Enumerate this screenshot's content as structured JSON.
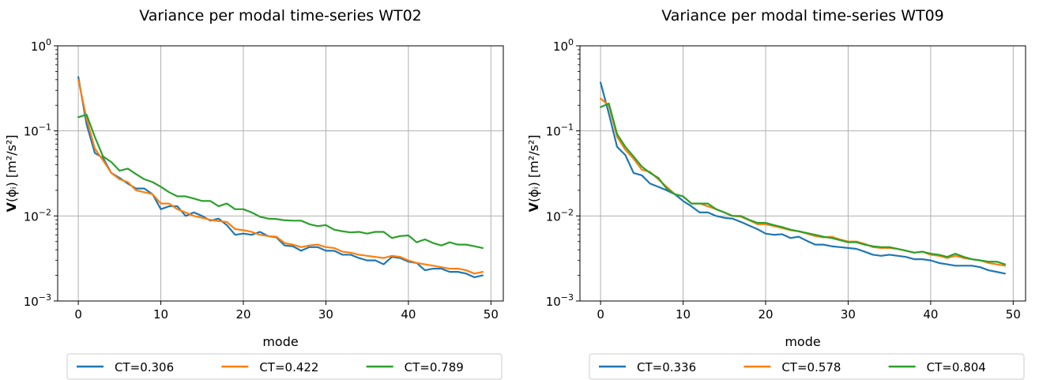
{
  "chart_data": [
    {
      "type": "line",
      "title": "Variance per modal time-series WT02",
      "xlabel": "mode",
      "ylabel_bold": "V",
      "ylabel_rest": "(ϕᵢ) [m²/s²]",
      "xlim": [
        -2.5,
        51.5
      ],
      "ylim": [
        0.001,
        1
      ],
      "yscale": "log",
      "x_ticks": [
        0,
        10,
        20,
        30,
        40,
        50
      ],
      "y_ticks": [
        0.001,
        0.01,
        0.1,
        1
      ],
      "y_tick_labels": [
        {
          "base": "10",
          "exp": "−3"
        },
        {
          "base": "10",
          "exp": "−2"
        },
        {
          "base": "10",
          "exp": "−1"
        },
        {
          "base": "10",
          "exp": "0"
        }
      ],
      "grid": true,
      "legend_position": "below",
      "series": [
        {
          "name": "CT=0.306",
          "color": "#1f77b4",
          "values": [
            0.43,
            0.12,
            0.055,
            0.048,
            0.032,
            0.028,
            0.024,
            0.021,
            0.021,
            0.018,
            0.012,
            0.013,
            0.013,
            0.01,
            0.011,
            0.01,
            0.0088,
            0.0093,
            0.0078,
            0.006,
            0.0062,
            0.006,
            0.0065,
            0.0058,
            0.0056,
            0.0045,
            0.0044,
            0.0039,
            0.0043,
            0.0043,
            0.0039,
            0.0039,
            0.0035,
            0.0035,
            0.0032,
            0.003,
            0.003,
            0.0027,
            0.0033,
            0.0032,
            0.0029,
            0.0028,
            0.0023,
            0.0024,
            0.0024,
            0.0022,
            0.0022,
            0.0021,
            0.0019,
            0.002
          ]
        },
        {
          "name": "CT=0.422",
          "color": "#ff7f0e",
          "values": [
            0.4,
            0.14,
            0.062,
            0.045,
            0.032,
            0.027,
            0.025,
            0.02,
            0.019,
            0.018,
            0.014,
            0.014,
            0.012,
            0.011,
            0.01,
            0.0095,
            0.009,
            0.0087,
            0.0085,
            0.007,
            0.0068,
            0.0065,
            0.006,
            0.0058,
            0.0057,
            0.0048,
            0.0046,
            0.0043,
            0.0045,
            0.0046,
            0.0043,
            0.0042,
            0.0038,
            0.0037,
            0.0035,
            0.0034,
            0.0033,
            0.0032,
            0.0034,
            0.0033,
            0.003,
            0.0028,
            0.0027,
            0.0026,
            0.0025,
            0.0024,
            0.0024,
            0.0023,
            0.0021,
            0.0022
          ]
        },
        {
          "name": "CT=0.789",
          "color": "#2ca02c",
          "values": [
            0.145,
            0.155,
            0.085,
            0.05,
            0.043,
            0.034,
            0.036,
            0.031,
            0.027,
            0.025,
            0.022,
            0.019,
            0.017,
            0.017,
            0.016,
            0.015,
            0.015,
            0.013,
            0.014,
            0.012,
            0.012,
            0.011,
            0.0098,
            0.0093,
            0.0092,
            0.0089,
            0.0088,
            0.0088,
            0.008,
            0.0076,
            0.0078,
            0.0069,
            0.0066,
            0.0064,
            0.0065,
            0.0062,
            0.0065,
            0.0065,
            0.0055,
            0.0058,
            0.0059,
            0.0049,
            0.0053,
            0.0048,
            0.0045,
            0.0049,
            0.0046,
            0.0046,
            0.0044,
            0.0042
          ]
        }
      ]
    },
    {
      "type": "line",
      "title": "Variance per modal time-series WT09",
      "xlabel": "mode",
      "ylabel_bold": "V",
      "ylabel_rest": "(ϕᵢ) [m²/s²]",
      "xlim": [
        -2.5,
        51.5
      ],
      "ylim": [
        0.001,
        1
      ],
      "yscale": "log",
      "x_ticks": [
        0,
        10,
        20,
        30,
        40,
        50
      ],
      "y_ticks": [
        0.001,
        0.01,
        0.1,
        1
      ],
      "y_tick_labels": [
        {
          "base": "10",
          "exp": "−3"
        },
        {
          "base": "10",
          "exp": "−2"
        },
        {
          "base": "10",
          "exp": "−1"
        },
        {
          "base": "10",
          "exp": "0"
        }
      ],
      "grid": true,
      "legend_position": "below",
      "series": [
        {
          "name": "CT=0.336",
          "color": "#1f77b4",
          "values": [
            0.37,
            0.16,
            0.065,
            0.052,
            0.032,
            0.03,
            0.024,
            0.022,
            0.02,
            0.018,
            0.015,
            0.013,
            0.011,
            0.011,
            0.01,
            0.0095,
            0.0093,
            0.0085,
            0.0077,
            0.007,
            0.0062,
            0.006,
            0.0061,
            0.0055,
            0.0057,
            0.0051,
            0.0046,
            0.0046,
            0.0044,
            0.0043,
            0.0042,
            0.0041,
            0.0038,
            0.0035,
            0.0034,
            0.0035,
            0.0034,
            0.0033,
            0.0031,
            0.0031,
            0.003,
            0.0028,
            0.0027,
            0.0026,
            0.0026,
            0.0026,
            0.0025,
            0.0023,
            0.0022,
            0.0021
          ]
        },
        {
          "name": "CT=0.578",
          "color": "#ff7f0e",
          "values": [
            0.24,
            0.2,
            0.085,
            0.06,
            0.047,
            0.035,
            0.033,
            0.027,
            0.022,
            0.018,
            0.017,
            0.014,
            0.014,
            0.013,
            0.012,
            0.011,
            0.01,
            0.0098,
            0.0089,
            0.008,
            0.008,
            0.0076,
            0.0072,
            0.0068,
            0.0066,
            0.0062,
            0.0058,
            0.0056,
            0.0057,
            0.0053,
            0.005,
            0.005,
            0.0047,
            0.0043,
            0.0042,
            0.0042,
            0.0041,
            0.0039,
            0.0037,
            0.0038,
            0.0035,
            0.0034,
            0.0032,
            0.0034,
            0.0032,
            0.0031,
            0.003,
            0.0028,
            0.0027,
            0.0026
          ]
        },
        {
          "name": "CT=0.804",
          "color": "#2ca02c",
          "values": [
            0.19,
            0.21,
            0.092,
            0.065,
            0.05,
            0.038,
            0.032,
            0.028,
            0.021,
            0.018,
            0.017,
            0.014,
            0.014,
            0.014,
            0.012,
            0.011,
            0.01,
            0.01,
            0.009,
            0.0083,
            0.0083,
            0.0078,
            0.0074,
            0.0069,
            0.0066,
            0.0063,
            0.006,
            0.0057,
            0.0055,
            0.0052,
            0.0049,
            0.0049,
            0.0046,
            0.0044,
            0.0043,
            0.0043,
            0.0041,
            0.0039,
            0.0037,
            0.0038,
            0.0036,
            0.0035,
            0.0033,
            0.0036,
            0.0033,
            0.0031,
            0.003,
            0.0029,
            0.0029,
            0.0027
          ]
        }
      ]
    }
  ]
}
